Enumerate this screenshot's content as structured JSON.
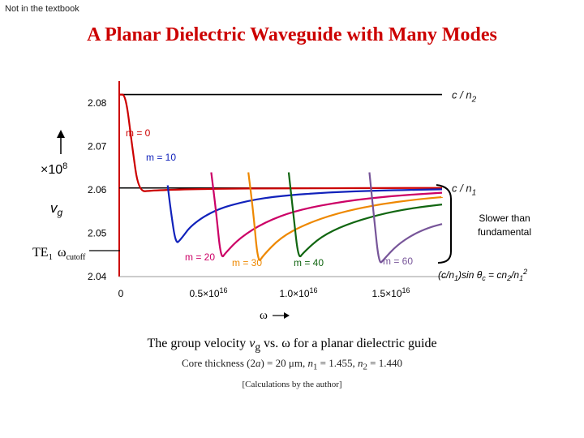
{
  "note": "Not in the textbook",
  "title": "A Planar Dielectric Waveguide with Many Modes",
  "caption": "The group velocity vg vs. ω for a planar dielectric guide",
  "subcaption": "Core thickness (2a) = 20 μm, n1 = 1.455, n2 = 1.440",
  "credit": "[Calculations by the author]",
  "chart_data": {
    "type": "line",
    "xlabel": "ω",
    "ylabel": "vg",
    "y_multiplier": "×10⁸",
    "xlim": [
      0,
      2e+16
    ],
    "ylim": [
      2.04,
      2.085
    ],
    "yticks": [
      "2.04",
      "2.05",
      "2.06",
      "2.07",
      "2.08"
    ],
    "xticks": [
      {
        "value": 0,
        "label": "0"
      },
      {
        "value": 5000000000000000.0,
        "label": "0.5×10¹⁶"
      },
      {
        "value": 1e+16,
        "label": "1.0×10¹⁶"
      },
      {
        "value": 1.5e+16,
        "label": "1.5×10¹⁶"
      }
    ],
    "reference_lines": [
      {
        "label": "c / n2",
        "value": 2.0819
      },
      {
        "label": "c / n1",
        "value": 2.0604
      }
    ],
    "series": [
      {
        "name": "m = 0",
        "color": "#cc0000",
        "x": [
          0.0,
          400000000000000.0,
          800000000000000.0,
          1200000000000000.0,
          2000000000000000.0,
          4000000000000000.0,
          8000000000000000.0,
          1.2e+16,
          1.6e+16,
          2e+16
        ],
        "y": [
          2.0819,
          2.0819,
          2.07,
          2.0595,
          2.0598,
          2.0601,
          2.0603,
          2.0603,
          2.0604,
          2.0604
        ]
      },
      {
        "name": "m = 10",
        "color": "#1122bb",
        "x": [
          3000000000000000.0,
          3200000000000000.0,
          3500000000000000.0,
          3800000000000000.0,
          4500000000000000.0,
          6000000000000000.0,
          8000000000000000.0,
          1e+16,
          1.3e+16,
          1.6e+16,
          2e+16
        ],
        "y": [
          2.061,
          2.055,
          2.0475,
          2.0485,
          2.052,
          2.0555,
          2.0575,
          2.0586,
          2.0594,
          2.0598,
          2.0601
        ]
      },
      {
        "name": "m = 20",
        "color": "#cc0066",
        "x": [
          5700000000000000.0,
          6000000000000000.0,
          6300000000000000.0,
          6600000000000000.0,
          7500000000000000.0,
          9000000000000000.0,
          1.1e+16,
          1.4e+16,
          1.7e+16,
          2e+16
        ],
        "y": [
          2.064,
          2.055,
          2.044,
          2.0455,
          2.049,
          2.0525,
          2.0553,
          2.0574,
          2.0586,
          2.0593
        ]
      },
      {
        "name": "m = 30",
        "color": "#ee8800",
        "x": [
          8000000000000000.0,
          8300000000000000.0,
          8600000000000000.0,
          8900000000000000.0,
          1e+16,
          1.15e+16,
          1.35e+16,
          1.6e+16,
          1.85e+16,
          2e+16
        ],
        "y": [
          2.064,
          2.055,
          2.043,
          2.0448,
          2.049,
          2.052,
          2.0546,
          2.0566,
          2.0578,
          2.0583
        ]
      },
      {
        "name": "m = 40",
        "color": "#116611",
        "x": [
          1.05e+16,
          1.08e+16,
          1.11e+16,
          1.14e+16,
          1.25e+16,
          1.4e+16,
          1.6e+16,
          1.8e+16,
          2e+16
        ],
        "y": [
          2.064,
          2.054,
          2.044,
          2.0455,
          2.0492,
          2.0519,
          2.0542,
          2.0557,
          2.0566
        ]
      },
      {
        "name": "m = 60",
        "color": "#775599",
        "x": [
          1.55e+16,
          1.58e+16,
          1.61e+16,
          1.64e+16,
          1.72e+16,
          1.82e+16,
          1.92e+16,
          2e+16
        ],
        "y": [
          2.064,
          2.053,
          2.0427,
          2.044,
          2.0472,
          2.0497,
          2.0513,
          2.0521
        ]
      }
    ],
    "annotations": [
      {
        "text": "TE1",
        "sub": "ωcutoff"
      },
      {
        "text": "Slower than fundamental"
      },
      {
        "text": "(c/n1)sin θc = cn2/n1²"
      }
    ]
  }
}
